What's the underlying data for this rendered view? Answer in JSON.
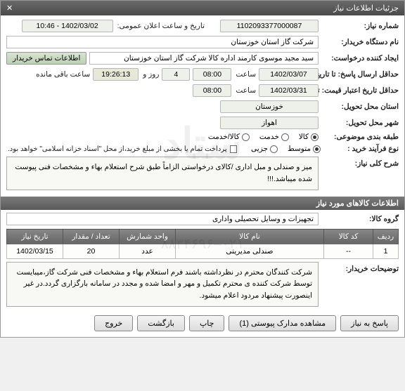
{
  "title": "جزئیات اطلاعات نیاز",
  "labels": {
    "need_no": "شماره نیاز:",
    "announce_date": "تاریخ و ساعت اعلان عمومی:",
    "buyer_org": "نام دستگاه خریدار:",
    "requester": "ایجاد کننده درخواست:",
    "contact_btn": "اطلاعات تماس خریدار",
    "deadline": "حداقل ارسال پاسخ: تا تاریخ:",
    "validity": "حداقل تاریخ اعتبار قیمت: تا تاریخ:",
    "province": "استان محل تحویل:",
    "city": "شهر محل تحویل:",
    "category": "طبقه بندی موضوعی:",
    "process": "نوع فرآیند خرید :",
    "saat": "ساعت",
    "rooz_va": "روز و",
    "baghi": "ساعت باقی مانده",
    "payment_note": "پرداخت تمام یا بخشی از مبلغ خرید،از محل \"اسناد خزانه اسلامی\" خواهد بود.",
    "desc_label": "شرح کلی نیاز:",
    "goods_section": "اطلاعات کالاهای مورد نیاز",
    "goods_group_lbl": "گروه کالا:",
    "buyer_notes_lbl": "توضیحات خریدار:"
  },
  "values": {
    "need_no": "1102093377000087",
    "announce_date": "1402/03/02 - 10:46",
    "buyer_org": "شرکت گاز استان خوزستان",
    "requester": "سید مجید موسوی کارمند اداره کالا شرکت گاز استان خوزستان",
    "deadline_date": "1402/03/07",
    "deadline_time": "08:00",
    "days_left": "4",
    "time_left": "19:26:13",
    "validity_date": "1402/03/31",
    "validity_time": "08:00",
    "province": "خوزستان",
    "city": "اهواز"
  },
  "category_options": [
    "کالا",
    "خدمت",
    "کالا/خدمت"
  ],
  "category_selected": 0,
  "process_options": [
    "متوسط",
    "جزیی"
  ],
  "process_selected": 0,
  "description": "میز و صندلی و مبل اداری /کالای درخواستی الزاماً طبق شرح استعلام بهاء و مشخصات فنی پیوست شده میباشد.!!!",
  "goods_group": "تجهیزات و وسایل تحصیلی واداری",
  "table": {
    "headers": [
      "ردیف",
      "کد کالا",
      "نام کالا",
      "واحد شمارش",
      "تعداد / مقدار",
      "تاریخ نیاز"
    ],
    "rows": [
      [
        "1",
        "--",
        "صندلی مدیریتی",
        "عدد",
        "20",
        "1402/03/15"
      ]
    ],
    "col_widths": [
      "36px",
      "70px",
      "auto",
      "80px",
      "80px",
      "80px"
    ]
  },
  "buyer_notes": "شرکت کنندگان محترم در نظرداشته باشند فرم استعلام بهاء و مشخصات فنی شرکت گاز،میبایست توسط شرکت کننده ی محترم تکمیل و مهر و امضا شده و مجدد در سامانه بارگزاری گردد.در غیر اینصورت پیشنهاد مردود اعلام میشود.",
  "buttons": {
    "respond": "پاسخ به نیاز",
    "attachments": "مشاهده مدارک پیوستی (1)",
    "print": "چاپ",
    "back": "بازگشت",
    "exit": "خروج"
  },
  "colors": {
    "header_bg": "#5a5a5a",
    "field_bg": "#eef0ea",
    "highlight": "#e8e8d8"
  }
}
